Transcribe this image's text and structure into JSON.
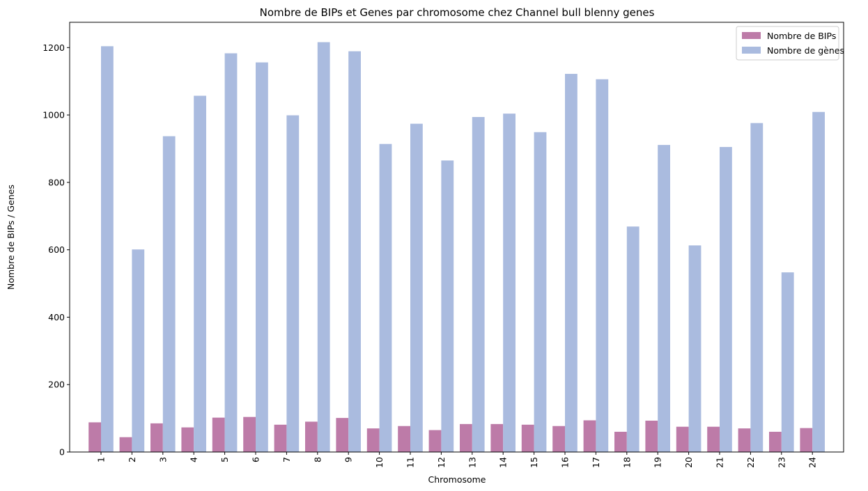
{
  "chart_data": {
    "type": "bar",
    "title": "Nombre de BIPs et Genes par chromosome chez Channel bull blenny genes",
    "xlabel": "Chromosome",
    "ylabel": "Nombre de BIPs / Genes",
    "ylim": [
      0,
      1275
    ],
    "yticks": [
      0,
      200,
      400,
      600,
      800,
      1000,
      1200
    ],
    "grid": false,
    "legend_position": "top-right",
    "categories": [
      "1",
      "2",
      "3",
      "4",
      "5",
      "6",
      "7",
      "8",
      "9",
      "10",
      "11",
      "12",
      "13",
      "14",
      "15",
      "16",
      "17",
      "18",
      "19",
      "20",
      "21",
      "22",
      "23",
      "24"
    ],
    "series": [
      {
        "name": "Nombre de BIPs",
        "color": "#bd7ba8",
        "values": [
          88,
          44,
          85,
          73,
          102,
          104,
          81,
          90,
          101,
          70,
          77,
          65,
          83,
          83,
          81,
          77,
          94,
          60,
          93,
          75,
          75,
          70,
          60,
          71
        ]
      },
      {
        "name": "Nombre de gènes",
        "color": "#aabbdf",
        "values": [
          1204,
          601,
          937,
          1057,
          1183,
          1156,
          999,
          1216,
          1189,
          914,
          974,
          865,
          994,
          1004,
          949,
          1122,
          1106,
          669,
          911,
          613,
          905,
          976,
          533,
          1009
        ]
      }
    ]
  }
}
